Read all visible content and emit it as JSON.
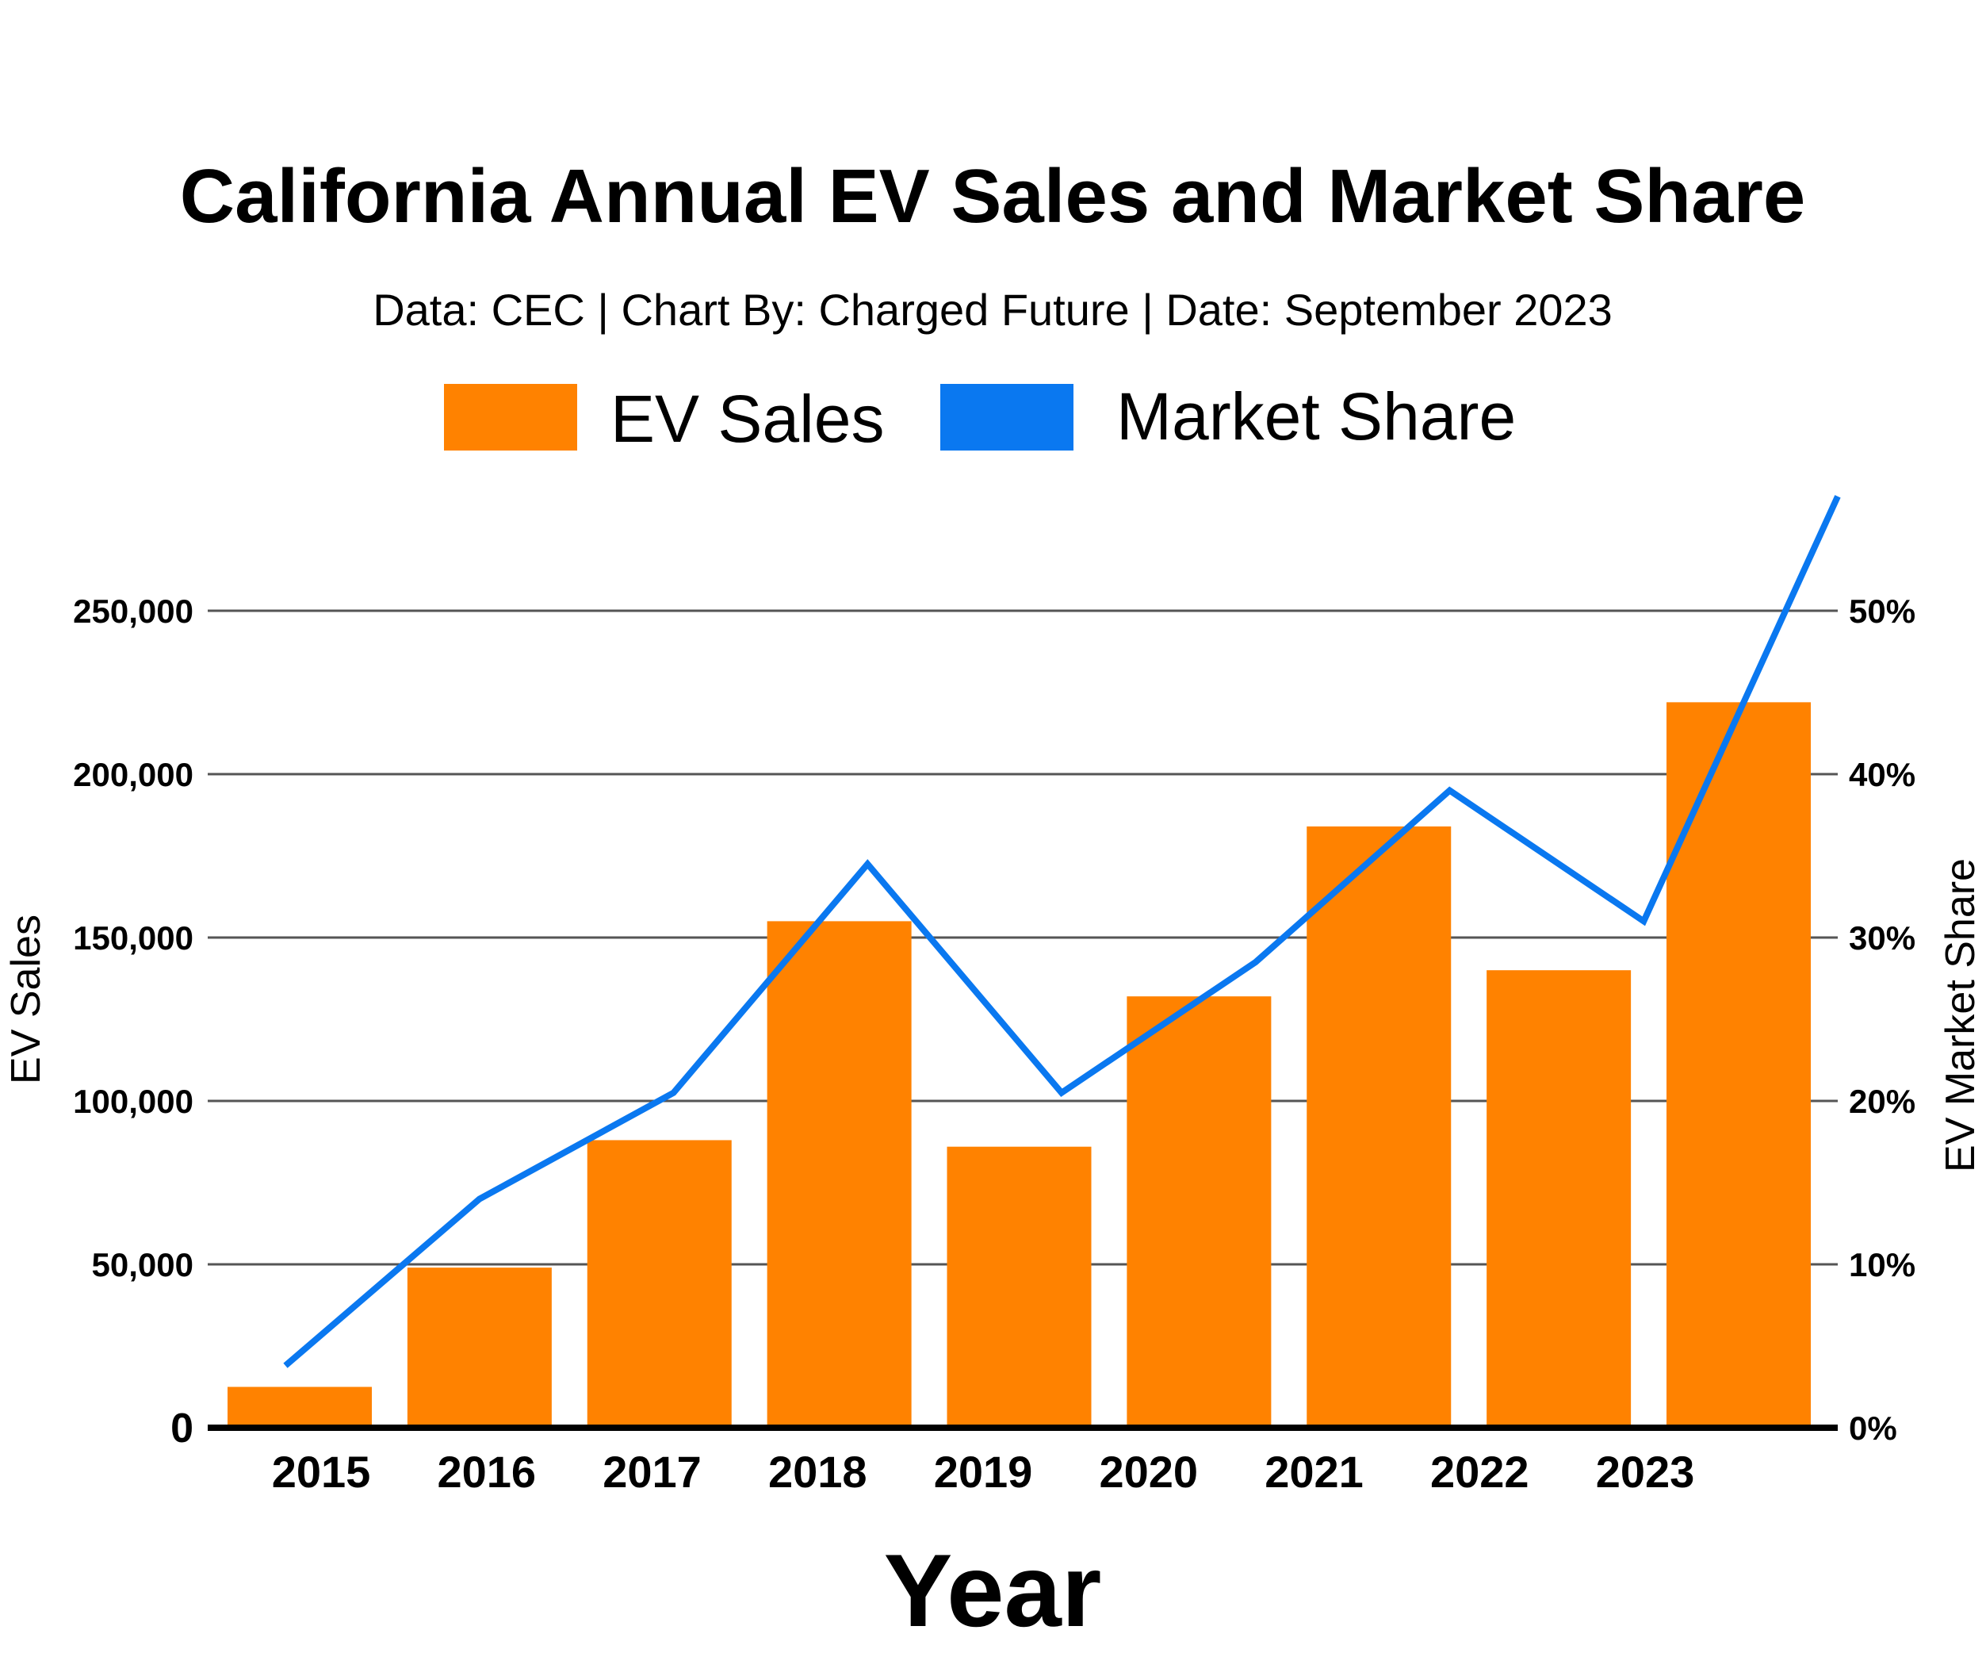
{
  "chart_data": {
    "type": "bar",
    "title": "California Annual EV Sales and Market Share",
    "subtitle": "Data: CEC | Chart By: Charged Future | Date: September 2023",
    "xlabel": "Year",
    "ylabel": "EV Sales",
    "ylabel_right": "EV Market Share",
    "categories": [
      "2015",
      "2016",
      "2017",
      "2018",
      "2019",
      "2020",
      "2021",
      "2022",
      "2023"
    ],
    "ylim": [
      0,
      250000
    ],
    "ylim_right": [
      0,
      50
    ],
    "yticks": [
      "0",
      "50,000",
      "100,000",
      "150,000",
      "200,000",
      "250,000"
    ],
    "yticks_right": [
      "0%",
      "10%",
      "20%",
      "30%",
      "40%",
      "50%"
    ],
    "grid": true,
    "legend_position": "top",
    "series": [
      {
        "name": "EV Sales",
        "type": "bar",
        "axis": "left",
        "color": "#FF8200",
        "values": [
          12500,
          49000,
          88000,
          155000,
          86000,
          132000,
          184000,
          140000,
          222000
        ]
      },
      {
        "name": "Market Share",
        "type": "line",
        "axis": "right",
        "color": "#0A78F0",
        "x": [
          2015,
          2016,
          2017,
          2018,
          2019,
          2020,
          2021,
          2022,
          2023
        ],
        "values": [
          3.8,
          14,
          20.5,
          34.5,
          20.5,
          28.5,
          39,
          31,
          57
        ]
      }
    ]
  },
  "colors": {
    "bar": "#FF8200",
    "line": "#0A78F0",
    "grid": "#555555",
    "axis": "#000000"
  }
}
